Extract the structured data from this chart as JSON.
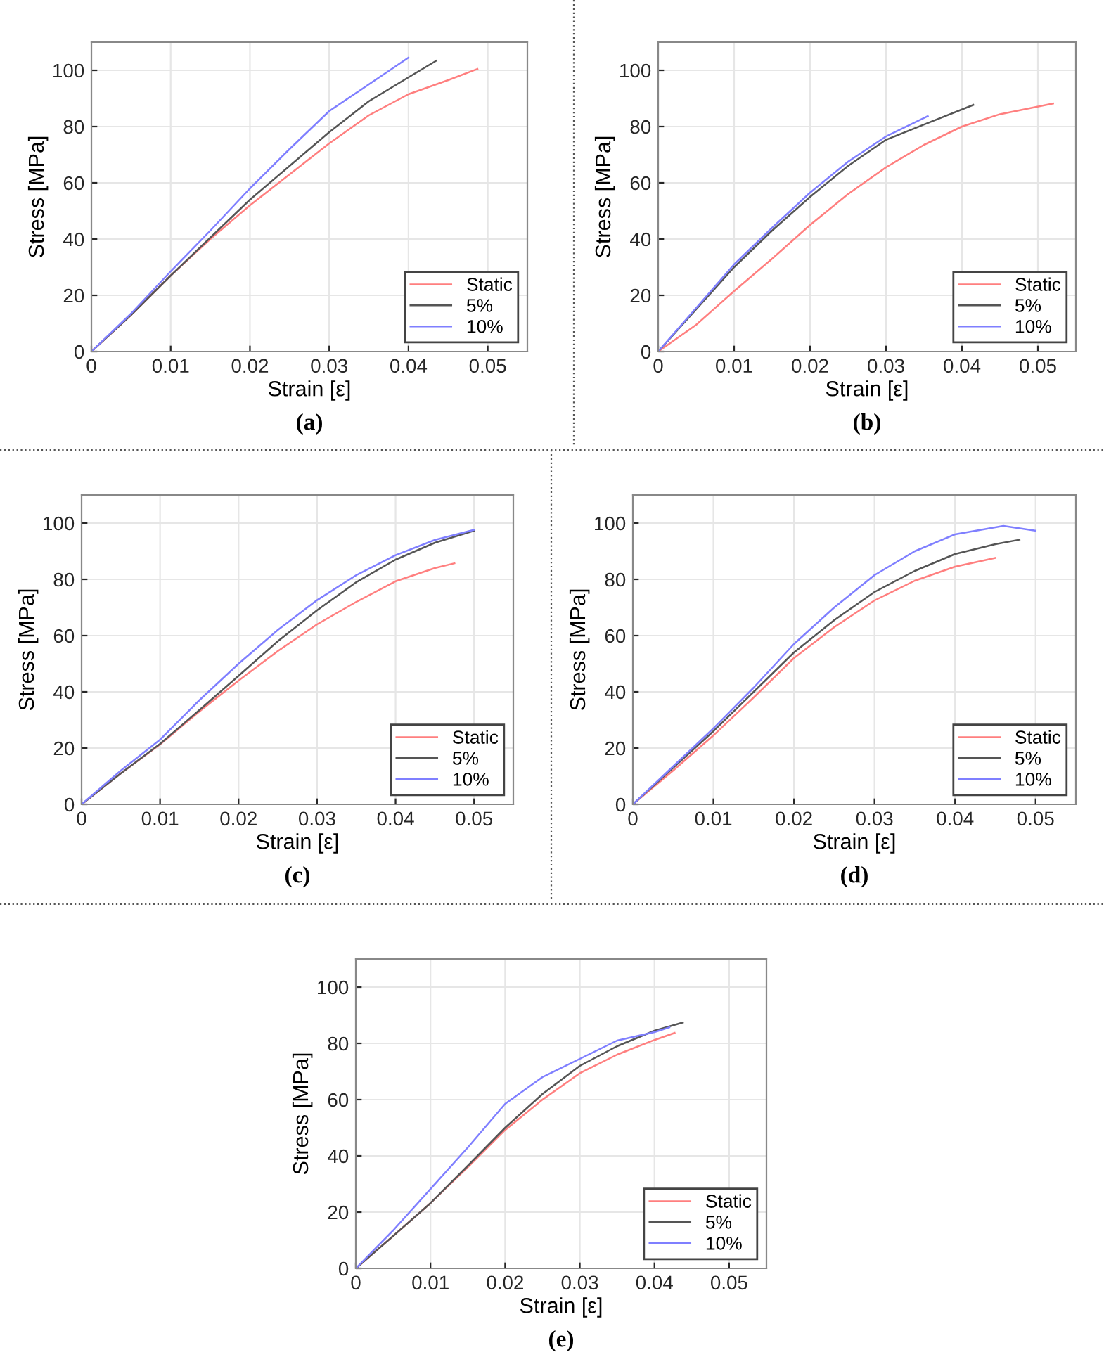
{
  "chart_data": [
    {
      "type": "line",
      "xlabel": "Strain [ε]",
      "ylabel": "Stress [MPa]",
      "annotations": [
        "(a)"
      ],
      "xlim": [
        0,
        0.055
      ],
      "ylim": [
        0,
        110
      ],
      "xticks": [
        0,
        0.01,
        0.02,
        0.03,
        0.04,
        0.05
      ],
      "yticks": [
        0,
        20,
        40,
        60,
        80,
        100
      ],
      "grid": true,
      "legend": "bottom right",
      "series": [
        {
          "name": "Static",
          "color": "#ff7f7f",
          "x": [
            0,
            0.005,
            0.01,
            0.015,
            0.02,
            0.025,
            0.03,
            0.035,
            0.04,
            0.045,
            0.0487
          ],
          "values": [
            0,
            13,
            27,
            40,
            52,
            63,
            74,
            84,
            91.5,
            96.5,
            100.5
          ]
        },
        {
          "name": "5%",
          "color": "#555555",
          "x": [
            0,
            0.005,
            0.01,
            0.015,
            0.02,
            0.025,
            0.03,
            0.035,
            0.04,
            0.0435
          ],
          "values": [
            0,
            13,
            27,
            40.5,
            54,
            66,
            78,
            89,
            97.5,
            103.4
          ]
        },
        {
          "name": "10%",
          "color": "#7f7fff",
          "x": [
            0,
            0.005,
            0.01,
            0.015,
            0.02,
            0.025,
            0.03,
            0.035,
            0.04
          ],
          "values": [
            0,
            13.5,
            28.5,
            43,
            58,
            72,
            85.5,
            95,
            104.5
          ]
        }
      ]
    },
    {
      "type": "line",
      "xlabel": "Strain [ε]",
      "ylabel": "Stress [MPa]",
      "annotations": [
        "(b)"
      ],
      "xlim": [
        0,
        0.055
      ],
      "ylim": [
        0,
        110
      ],
      "xticks": [
        0,
        0.01,
        0.02,
        0.03,
        0.04,
        0.05
      ],
      "yticks": [
        0,
        20,
        40,
        60,
        80,
        100
      ],
      "grid": true,
      "legend": "bottom right",
      "series": [
        {
          "name": "Static",
          "color": "#ff7f7f",
          "x": [
            0,
            0.005,
            0.01,
            0.015,
            0.02,
            0.025,
            0.03,
            0.035,
            0.04,
            0.045,
            0.052
          ],
          "values": [
            0,
            9.5,
            21.5,
            33,
            45,
            56,
            65.5,
            73.5,
            80,
            84.4,
            88.2
          ]
        },
        {
          "name": "5%",
          "color": "#555555",
          "x": [
            0,
            0.005,
            0.01,
            0.015,
            0.02,
            0.025,
            0.03,
            0.035,
            0.0415
          ],
          "values": [
            0,
            15,
            30,
            43,
            55,
            66,
            75.3,
            80.7,
            87.7
          ]
        },
        {
          "name": "10%",
          "color": "#7f7fff",
          "x": [
            0,
            0.005,
            0.01,
            0.015,
            0.02,
            0.025,
            0.03,
            0.0355
          ],
          "values": [
            0,
            15.5,
            31,
            44,
            56.5,
            67.5,
            76.5,
            83.7
          ]
        }
      ]
    },
    {
      "type": "line",
      "xlabel": "Strain [ε]",
      "ylabel": "Stress [MPa]",
      "annotations": [
        "(c)"
      ],
      "xlim": [
        0,
        0.055
      ],
      "ylim": [
        0,
        110
      ],
      "xticks": [
        0,
        0.01,
        0.02,
        0.03,
        0.04,
        0.05
      ],
      "yticks": [
        0,
        20,
        40,
        60,
        80,
        100
      ],
      "grid": true,
      "legend": "bottom right",
      "series": [
        {
          "name": "Static",
          "color": "#ff7f7f",
          "x": [
            0,
            0.005,
            0.01,
            0.015,
            0.02,
            0.025,
            0.03,
            0.035,
            0.04,
            0.045,
            0.0475
          ],
          "values": [
            0,
            11,
            21.3,
            33,
            44,
            54.5,
            64,
            72,
            79.3,
            84,
            85.7
          ]
        },
        {
          "name": "5%",
          "color": "#555555",
          "x": [
            0,
            0.005,
            0.01,
            0.015,
            0.02,
            0.025,
            0.03,
            0.035,
            0.04,
            0.045,
            0.05
          ],
          "values": [
            0,
            11,
            21.5,
            33.5,
            45.7,
            58,
            69,
            79,
            87,
            93,
            97.3
          ]
        },
        {
          "name": "10%",
          "color": "#7f7fff",
          "x": [
            0,
            0.005,
            0.01,
            0.015,
            0.02,
            0.025,
            0.03,
            0.035,
            0.04,
            0.045,
            0.05
          ],
          "values": [
            0,
            12,
            23,
            37,
            50,
            62,
            72.6,
            81.5,
            88.6,
            94,
            97.6
          ]
        }
      ]
    },
    {
      "type": "line",
      "xlabel": "Strain [ε]",
      "ylabel": "Stress [MPa]",
      "annotations": [
        "(d)"
      ],
      "xlim": [
        0,
        0.055
      ],
      "ylim": [
        0,
        110
      ],
      "xticks": [
        0,
        0.01,
        0.02,
        0.03,
        0.04,
        0.05
      ],
      "yticks": [
        0,
        20,
        40,
        60,
        80,
        100
      ],
      "grid": true,
      "legend": "bottom right",
      "series": [
        {
          "name": "Static",
          "color": "#ff7f7f",
          "x": [
            0,
            0.005,
            0.01,
            0.015,
            0.02,
            0.025,
            0.03,
            0.035,
            0.04,
            0.045
          ],
          "values": [
            0,
            12,
            24.5,
            38,
            52,
            63,
            72.5,
            79.5,
            84.5,
            87.6
          ]
        },
        {
          "name": "5%",
          "color": "#555555",
          "x": [
            0,
            0.005,
            0.01,
            0.015,
            0.02,
            0.025,
            0.03,
            0.035,
            0.04,
            0.045,
            0.048
          ],
          "values": [
            0,
            13,
            26,
            40,
            54,
            65.5,
            75.5,
            83,
            89,
            92.5,
            94.1
          ]
        },
        {
          "name": "10%",
          "color": "#7f7fff",
          "x": [
            0,
            0.005,
            0.01,
            0.015,
            0.02,
            0.025,
            0.03,
            0.035,
            0.04,
            0.046,
            0.05
          ],
          "values": [
            0,
            13.5,
            27,
            41.5,
            57,
            70,
            81.5,
            90,
            96,
            99,
            97.3
          ]
        }
      ]
    },
    {
      "type": "line",
      "xlabel": "Strain [ε]",
      "ylabel": "Stress [MPa]",
      "annotations": [
        "(e)"
      ],
      "xlim": [
        0,
        0.055
      ],
      "ylim": [
        0,
        110
      ],
      "xticks": [
        0,
        0.01,
        0.02,
        0.03,
        0.04,
        0.05
      ],
      "yticks": [
        0,
        20,
        40,
        60,
        80,
        100
      ],
      "grid": true,
      "legend": "bottom right",
      "series": [
        {
          "name": "Static",
          "color": "#ff7f7f",
          "x": [
            0,
            0.005,
            0.01,
            0.015,
            0.02,
            0.025,
            0.03,
            0.035,
            0.04,
            0.0427
          ],
          "values": [
            0,
            11.5,
            23.2,
            36,
            49.2,
            60,
            69.4,
            76,
            81.2,
            83.7
          ]
        },
        {
          "name": "5%",
          "color": "#555555",
          "x": [
            0,
            0.005,
            0.01,
            0.015,
            0.02,
            0.025,
            0.03,
            0.035,
            0.04,
            0.0438
          ],
          "values": [
            0,
            11.5,
            23.2,
            36.5,
            50,
            62,
            72,
            79,
            84.5,
            87.4
          ]
        },
        {
          "name": "10%",
          "color": "#7f7fff",
          "x": [
            0,
            0.005,
            0.01,
            0.015,
            0.02,
            0.025,
            0.03,
            0.035,
            0.04,
            0.042
          ],
          "values": [
            0,
            13.5,
            28.2,
            43,
            58.5,
            68,
            74.5,
            81,
            84,
            85.7
          ]
        }
      ]
    }
  ]
}
